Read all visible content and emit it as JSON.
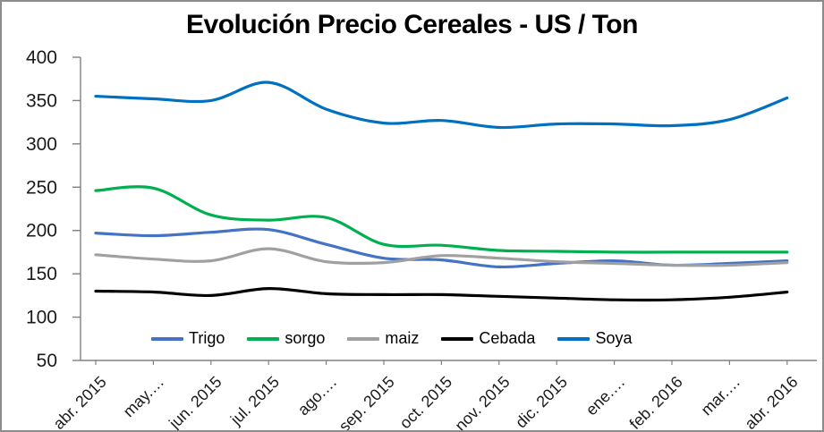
{
  "window": {
    "background": "#FFFFFF",
    "border_color": "#8C8C8C"
  },
  "chart_data": {
    "type": "line",
    "title": "Evolución Precio Cereales - US / Ton",
    "units": "US$ / Ton",
    "grid": false,
    "smoothed_lines": true,
    "legend_position": "bottom-inside",
    "axis_color": "#808080",
    "x_label_rotation_deg": -45,
    "categories": [
      "abr. 2015",
      "may.…",
      "jun. 2015",
      "jul. 2015",
      "ago.…",
      "sep. 2015",
      "oct. 2015",
      "nov. 2015",
      "dic. 2015",
      "ene.…",
      "feb. 2016",
      "mar.…",
      "abr. 2016"
    ],
    "y_axis": {
      "min": 50,
      "max": 400,
      "step": 50,
      "ticks": [
        400,
        350,
        300,
        250,
        200,
        150,
        100,
        50
      ]
    },
    "series": [
      {
        "name": "Trigo",
        "color": "#4472C4",
        "values": [
          197,
          194,
          198,
          201,
          184,
          168,
          166,
          158,
          162,
          165,
          160,
          162,
          165
        ]
      },
      {
        "name": "sorgo",
        "color": "#00B050",
        "values": [
          246,
          249,
          218,
          212,
          215,
          184,
          183,
          177,
          176,
          175,
          175,
          175,
          175
        ]
      },
      {
        "name": "maiz",
        "color": "#A0A0A0",
        "values": [
          172,
          167,
          165,
          179,
          164,
          163,
          171,
          168,
          164,
          162,
          160,
          160,
          163
        ]
      },
      {
        "name": "Cebada",
        "color": "#000000",
        "values": [
          130,
          129,
          125,
          133,
          127,
          126,
          126,
          124,
          122,
          120,
          120,
          123,
          129
        ]
      },
      {
        "name": "Soya",
        "color": "#0070C0",
        "values": [
          355,
          352,
          350,
          371,
          340,
          324,
          327,
          319,
          323,
          323,
          321,
          328,
          353
        ]
      }
    ]
  }
}
